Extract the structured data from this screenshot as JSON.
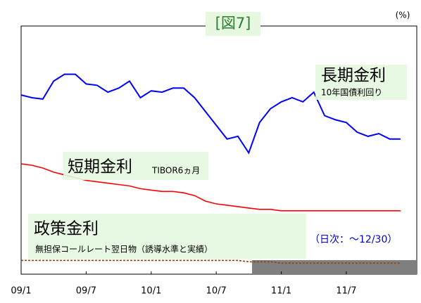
{
  "chart_data": {
    "type": "line",
    "title": "[図7]",
    "unit": "(%)",
    "categories": [
      "09/1",
      null,
      null,
      null,
      null,
      null,
      "09/7",
      null,
      null,
      null,
      null,
      null,
      "10/1",
      null,
      null,
      null,
      null,
      null,
      "10/7",
      null,
      null,
      null,
      null,
      null,
      "11/1",
      null,
      null,
      null,
      null,
      null,
      "11/7",
      null,
      null,
      null,
      null,
      null
    ],
    "ylim": [
      0,
      1.8
    ],
    "series": [
      {
        "name": "長期金利",
        "note": "10年国債利回り",
        "color": "#0000ff",
        "values": [
          1.3,
          1.28,
          1.27,
          1.4,
          1.45,
          1.45,
          1.38,
          1.37,
          1.32,
          1.35,
          1.4,
          1.28,
          1.33,
          1.32,
          1.35,
          1.35,
          1.28,
          1.18,
          1.08,
          0.98,
          1.0,
          0.88,
          1.1,
          1.2,
          1.25,
          1.28,
          1.25,
          1.32,
          1.15,
          1.12,
          1.1,
          1.03,
          1.0,
          1.02,
          0.98,
          0.98
        ]
      },
      {
        "name": "短期金利",
        "note": "TIBOR6ヵ月",
        "color": "#ff0000",
        "values": [
          0.8,
          0.79,
          0.77,
          0.74,
          0.72,
          0.7,
          0.68,
          0.67,
          0.66,
          0.65,
          0.64,
          0.62,
          0.61,
          0.6,
          0.6,
          0.59,
          0.57,
          0.53,
          0.51,
          0.5,
          0.49,
          0.48,
          0.47,
          0.47,
          0.46,
          0.46,
          0.46,
          0.46,
          0.46,
          0.46,
          0.46,
          0.46,
          0.46,
          0.46,
          0.46,
          0.46
        ]
      },
      {
        "name": "政策金利",
        "note": "無担保コールレート翌日物（誘導水準と実績）",
        "color": "#8b4513",
        "values": [
          0.1,
          0.1,
          0.1,
          0.1,
          0.1,
          0.1,
          0.1,
          0.1,
          0.1,
          0.1,
          0.1,
          0.1,
          0.1,
          0.1,
          0.1,
          0.1,
          0.1,
          0.1,
          0.1,
          0.1,
          0.1,
          0.09,
          0.09,
          0.09,
          0.08,
          0.08,
          0.08,
          0.08,
          0.08,
          0.08,
          0.08,
          0.08,
          0.08,
          0.08,
          0.08,
          0.08
        ]
      }
    ],
    "period_note": "（日次：～12/30）"
  }
}
